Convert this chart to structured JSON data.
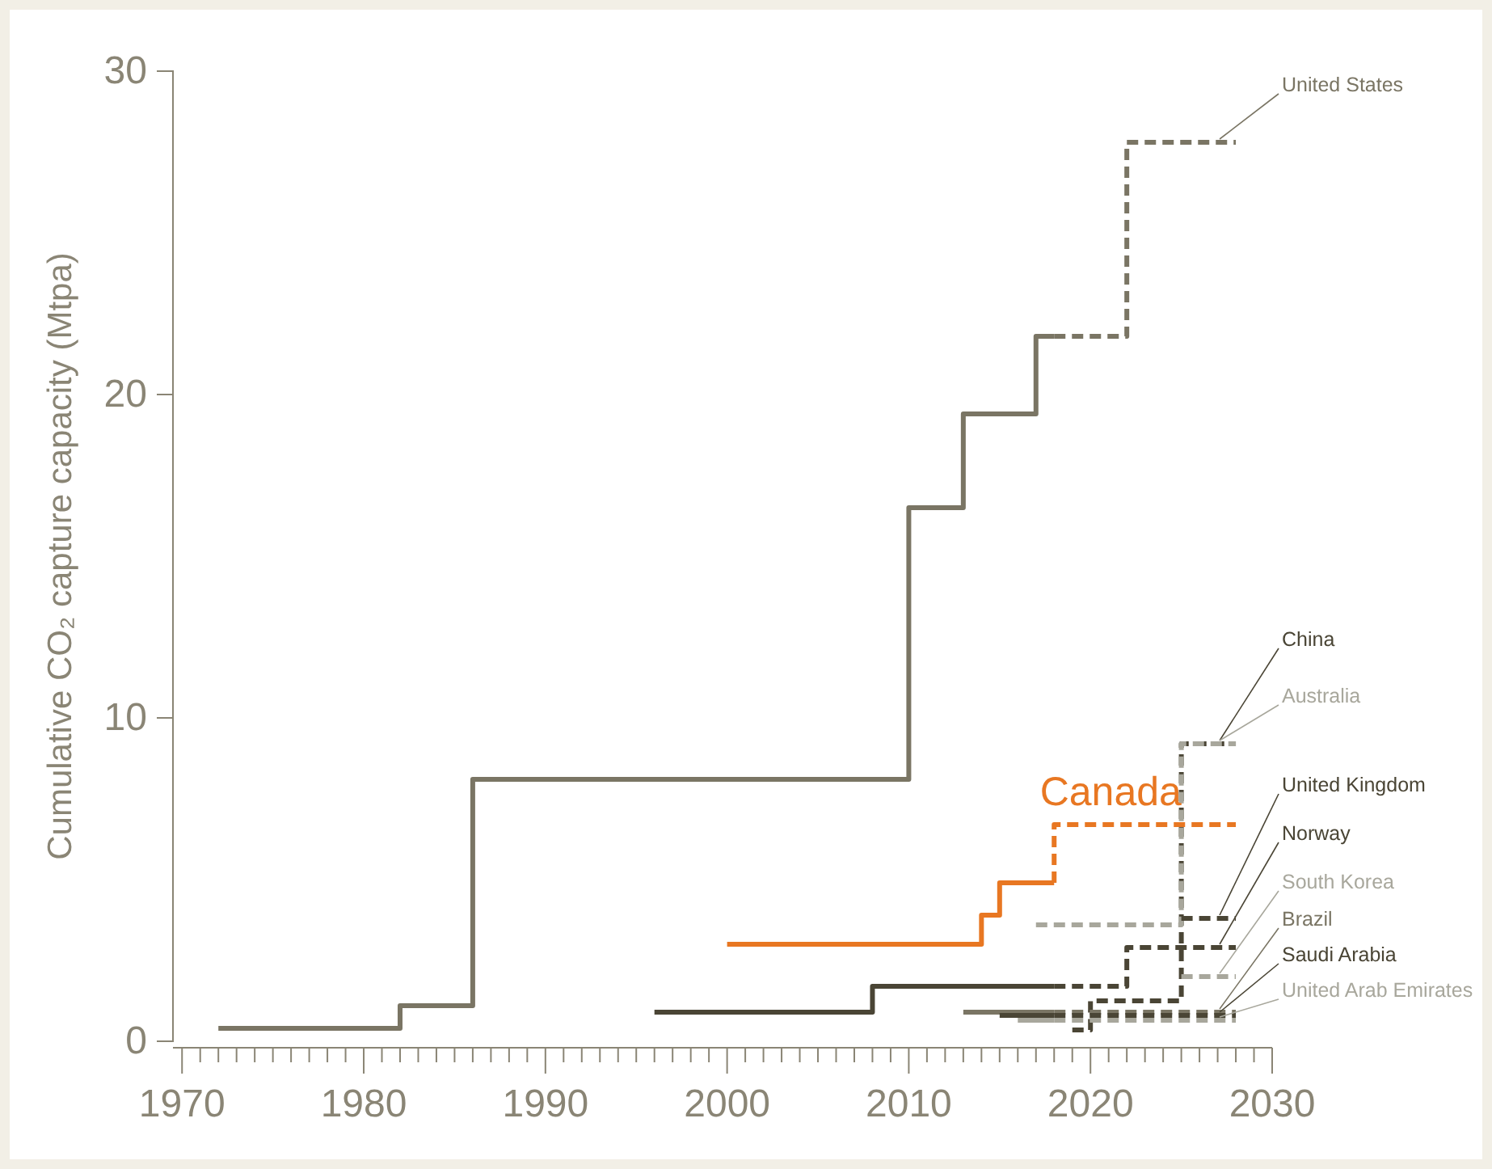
{
  "chart_data": {
    "type": "step",
    "ylabel": "Cumulative CO₂ capture capacity (Mtpa)",
    "xlim": [
      1969.5,
      2030
    ],
    "ylim": [
      0,
      30
    ],
    "xticks": [
      1970,
      {
        "value": 1971,
        "label": null
      },
      {
        "value": 1972,
        "label": null
      },
      {
        "value": 1973,
        "label": null
      },
      {
        "value": 1974,
        "label": null
      },
      {
        "value": 1975,
        "label": null
      },
      {
        "value": 1976,
        "label": null
      },
      {
        "value": 1977,
        "label": null
      },
      {
        "value": 1978,
        "label": null
      },
      {
        "value": 1979,
        "label": null
      },
      1980,
      {
        "value": 1981,
        "label": null
      },
      {
        "value": 1982,
        "label": null
      },
      {
        "value": 1983,
        "label": null
      },
      {
        "value": 1984,
        "label": null
      },
      {
        "value": 1985,
        "label": null
      },
      {
        "value": 1986,
        "label": null
      },
      {
        "value": 1987,
        "label": null
      },
      {
        "value": 1988,
        "label": null
      },
      {
        "value": 1989,
        "label": null
      },
      1990,
      {
        "value": 1991,
        "label": null
      },
      {
        "value": 1992,
        "label": null
      },
      {
        "value": 1993,
        "label": null
      },
      {
        "value": 1994,
        "label": null
      },
      {
        "value": 1995,
        "label": null
      },
      {
        "value": 1996,
        "label": null
      },
      {
        "value": 1997,
        "label": null
      },
      {
        "value": 1998,
        "label": null
      },
      {
        "value": 1999,
        "label": null
      },
      2000,
      {
        "value": 2001,
        "label": null
      },
      {
        "value": 2002,
        "label": null
      },
      {
        "value": 2003,
        "label": null
      },
      {
        "value": 2004,
        "label": null
      },
      {
        "value": 2005,
        "label": null
      },
      {
        "value": 2006,
        "label": null
      },
      {
        "value": 2007,
        "label": null
      },
      {
        "value": 2008,
        "label": null
      },
      {
        "value": 2009,
        "label": null
      },
      2010,
      {
        "value": 2011,
        "label": null
      },
      {
        "value": 2012,
        "label": null
      },
      {
        "value": 2013,
        "label": null
      },
      {
        "value": 2014,
        "label": null
      },
      {
        "value": 2015,
        "label": null
      },
      {
        "value": 2016,
        "label": null
      },
      {
        "value": 2017,
        "label": null
      },
      {
        "value": 2018,
        "label": null
      },
      {
        "value": 2019,
        "label": null
      },
      2020,
      {
        "value": 2021,
        "label": null
      },
      {
        "value": 2022,
        "label": null
      },
      {
        "value": 2023,
        "label": null
      },
      {
        "value": 2024,
        "label": null
      },
      {
        "value": 2025,
        "label": null
      },
      {
        "value": 2026,
        "label": null
      },
      {
        "value": 2027,
        "label": null
      },
      {
        "value": 2028,
        "label": null
      },
      {
        "value": 2029,
        "label": null
      },
      2030
    ],
    "yticks": [
      0,
      10,
      20,
      30
    ],
    "grid": false,
    "legend": false,
    "series": [
      {
        "color": "#7a7564",
        "line_style": "solid",
        "x": [
          1972,
          1982,
          1986,
          2010,
          2013,
          2017,
          2018
        ],
        "values": [
          0.4,
          1.1,
          8.1,
          16.5,
          19.4,
          21.8,
          21.8
        ]
      },
      {
        "name": "United States",
        "color": "#7a7564",
        "line_style": "dashed",
        "x": [
          2018,
          2022,
          2028
        ],
        "values": [
          21.8,
          27.8,
          27.8
        ]
      },
      {
        "name": "China",
        "color": "#4a4535",
        "line_style": "dashed",
        "x": [
          2019,
          2020,
          2025,
          2028
        ],
        "values": [
          0.35,
          1.25,
          9.2,
          9.2
        ]
      },
      {
        "name": "Australia",
        "color": "#a8a79c",
        "line_style": "dashed",
        "x": [
          2017,
          2025,
          2028
        ],
        "values": [
          3.6,
          9.2,
          9.2
        ]
      },
      {
        "color": "#e87722",
        "line_style": "solid",
        "x": [
          2000,
          2014,
          2015,
          2018
        ],
        "values": [
          3.0,
          3.9,
          4.9,
          4.9
        ]
      },
      {
        "name": "Canada",
        "color": "#e87722",
        "line_style": "dashed",
        "x": [
          2018,
          2018,
          2028
        ],
        "values": [
          4.9,
          6.7,
          6.7
        ]
      },
      {
        "name": "United Kingdom",
        "color": "#4a4535",
        "line_style": "dashed",
        "x": [
          2025,
          2028
        ],
        "values": [
          3.8,
          3.8
        ]
      },
      {
        "color": "#4a4535",
        "line_style": "solid",
        "x": [
          1996,
          2008,
          2018
        ],
        "values": [
          0.9,
          1.7,
          1.7
        ]
      },
      {
        "name": "Norway",
        "color": "#4a4535",
        "line_style": "dashed",
        "x": [
          2018,
          2022,
          2028
        ],
        "values": [
          1.7,
          2.9,
          2.9
        ]
      },
      {
        "name": "South Korea",
        "color": "#a8a79c",
        "line_style": "dashed",
        "x": [
          2025,
          2028
        ],
        "values": [
          2.0,
          2.0
        ]
      },
      {
        "color": "#7a7564",
        "line_style": "solid",
        "x": [
          2013,
          2018
        ],
        "values": [
          0.9,
          0.9
        ]
      },
      {
        "name": "Brazil",
        "color": "#7a7564",
        "line_style": "dashed",
        "x": [
          2018,
          2028
        ],
        "values": [
          0.9,
          0.9
        ]
      },
      {
        "color": "#4a4535",
        "line_style": "solid",
        "x": [
          2015,
          2018
        ],
        "values": [
          0.8,
          0.8
        ]
      },
      {
        "name": "Saudi Arabia",
        "color": "#4a4535",
        "line_style": "dashed",
        "x": [
          2018,
          2028
        ],
        "values": [
          0.8,
          0.8
        ]
      },
      {
        "color": "#a8a79c",
        "line_style": "solid",
        "x": [
          2016,
          2018
        ],
        "values": [
          0.65,
          0.65
        ]
      },
      {
        "name": "United Arab Emirates",
        "color": "#a8a79c",
        "line_style": "dashed",
        "x": [
          2018,
          2028
        ],
        "values": [
          0.65,
          0.65
        ]
      }
    ]
  }
}
